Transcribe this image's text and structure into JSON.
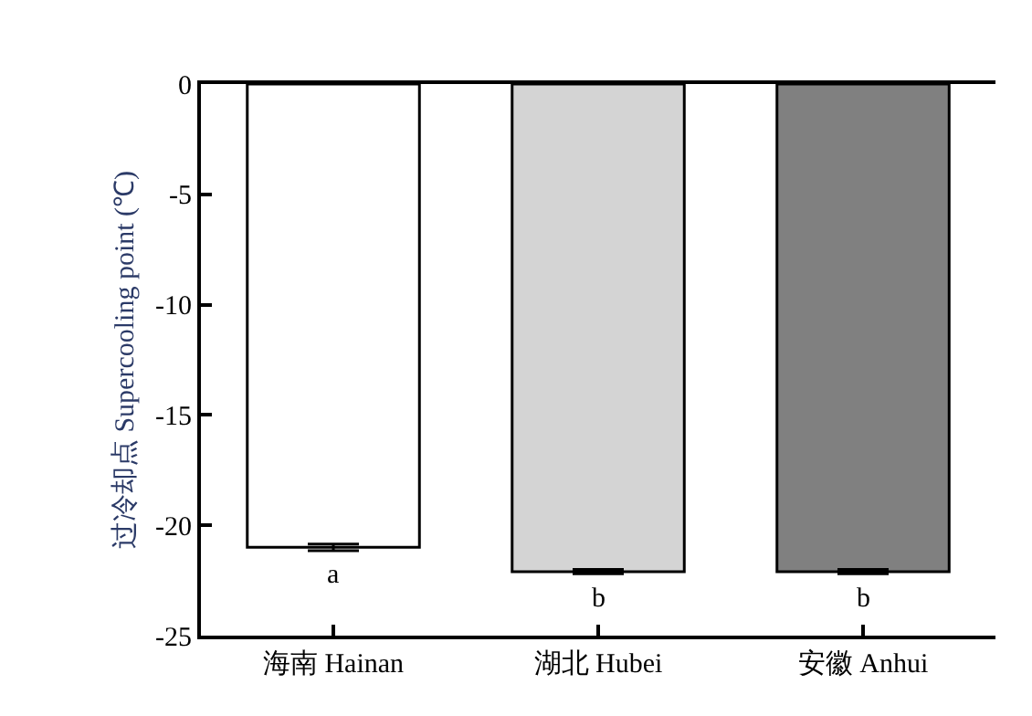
{
  "chart_data": {
    "type": "bar",
    "ylabel": "过冷却点 Supercooling point (℃)",
    "categories": [
      "海南 Hainan",
      "湖北 Hubei",
      "安徽 Anhui"
    ],
    "values": [
      -21.0,
      -22.1,
      -22.1
    ],
    "errors": [
      0.15,
      0.1,
      0.1
    ],
    "colors": [
      "#ffffff",
      "#d4d4d4",
      "#808080"
    ],
    "ylim": [
      -25,
      0
    ],
    "yticks": [
      0,
      -5,
      -10,
      -15,
      -20,
      -25
    ],
    "annotations": [
      {
        "text": "a",
        "x": "海南 Hainan",
        "y": -21.15
      },
      {
        "text": "b",
        "x": "湖北 Hubei",
        "y": -22.2
      },
      {
        "text": "b",
        "x": "安徽 Anhui",
        "y": -22.2
      }
    ]
  }
}
